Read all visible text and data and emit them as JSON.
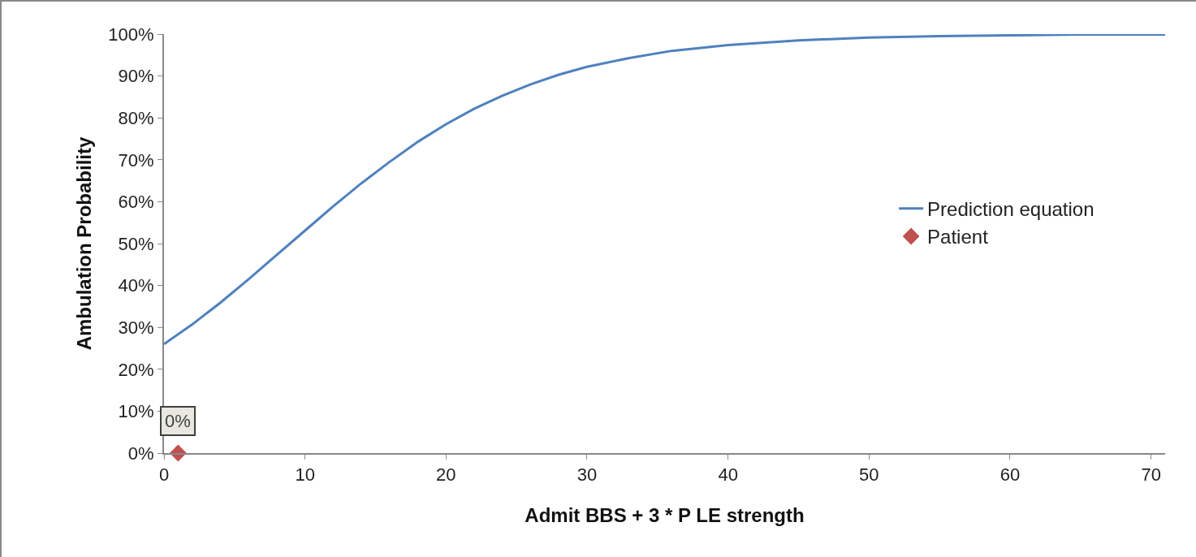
{
  "chart_data": {
    "type": "line",
    "xlabel": "Admit BBS + 3 * P LE strength",
    "ylabel": "Ambulation Probability",
    "xlim": [
      0,
      71
    ],
    "xticks": [
      0,
      10,
      20,
      30,
      40,
      50,
      60,
      70
    ],
    "ylim": [
      0,
      100
    ],
    "yticks": [
      {
        "value": 0,
        "label": "0%"
      },
      {
        "value": 10,
        "label": "10%"
      },
      {
        "value": 20,
        "label": "20%"
      },
      {
        "value": 30,
        "label": "30%"
      },
      {
        "value": 40,
        "label": "40%"
      },
      {
        "value": 50,
        "label": "50%"
      },
      {
        "value": 60,
        "label": "60%"
      },
      {
        "value": 70,
        "label": "70%"
      },
      {
        "value": 80,
        "label": "80%"
      },
      {
        "value": 90,
        "label": "90%"
      },
      {
        "value": 100,
        "label": "100%"
      }
    ],
    "grid": false,
    "legend": "right",
    "series": [
      {
        "name": "Prediction equation",
        "color": "#4f81bd",
        "marker": "none",
        "line_style": "solid",
        "x": [
          0,
          2,
          4,
          6,
          8,
          10,
          12,
          14,
          16,
          18,
          20,
          22,
          24,
          26,
          28,
          30,
          33,
          36,
          40,
          45,
          50,
          55,
          60,
          65,
          71
        ],
        "values": [
          26,
          30.7,
          35.9,
          41.5,
          47.3,
          53.1,
          58.9,
          64.4,
          69.5,
          74.3,
          78.5,
          82.2,
          85.3,
          88,
          90.3,
          92.2,
          94.3,
          96,
          97.4,
          98.5,
          99.2,
          99.5,
          99.7,
          99.9,
          99.9
        ]
      },
      {
        "name": "Patient",
        "type": "scatter",
        "color": "#c0504d",
        "marker": "diamond",
        "x": [
          1
        ],
        "values": [
          0
        ],
        "value_labels": [
          "0%"
        ]
      }
    ]
  }
}
